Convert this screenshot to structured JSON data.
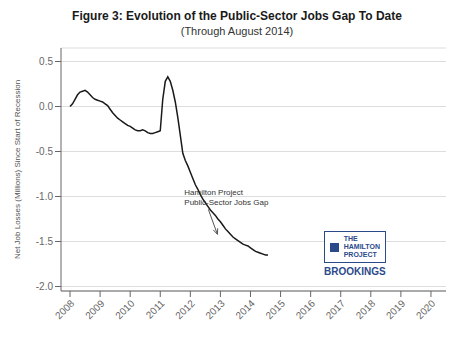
{
  "chart_data": {
    "type": "line",
    "title": "Figure 3: Evolution of the Public-Sector Jobs Gap To Date",
    "subtitle": "(Through August 2014)",
    "y_label": "Net Job Losses (Millions) Since Start of Recession",
    "xlim": [
      2007.7,
      2020.5
    ],
    "xticks": [
      2008,
      2009,
      2010,
      2011,
      2012,
      2013,
      2014,
      2015,
      2016,
      2017,
      2018,
      2019,
      2020
    ],
    "ylim": [
      -2.05,
      0.65
    ],
    "yticks": [
      0.5,
      {
        "value": 0.0,
        "label": "0.0"
      },
      -0.5,
      {
        "value": -1.0,
        "label": "-1.0"
      },
      -1.5,
      {
        "value": -2.0,
        "label": "-2.0"
      }
    ],
    "grid": "y",
    "color": "#1a1a1a",
    "x": [
      2008.0,
      2008.083,
      2008.167,
      2008.25,
      2008.333,
      2008.417,
      2008.5,
      2008.583,
      2008.667,
      2008.75,
      2008.833,
      2008.917,
      2009.0,
      2009.083,
      2009.167,
      2009.25,
      2009.333,
      2009.417,
      2009.5,
      2009.583,
      2009.667,
      2009.75,
      2009.833,
      2009.917,
      2010.0,
      2010.083,
      2010.167,
      2010.25,
      2010.333,
      2010.417,
      2010.5,
      2010.583,
      2010.667,
      2010.75,
      2010.833,
      2010.917,
      2011.0,
      2011.083,
      2011.167,
      2011.25,
      2011.333,
      2011.417,
      2011.5,
      2011.583,
      2011.667,
      2011.75,
      2011.833,
      2011.917,
      2012.0,
      2012.083,
      2012.167,
      2012.25,
      2012.333,
      2012.417,
      2012.5,
      2012.583,
      2012.667,
      2012.75,
      2012.833,
      2012.917,
      2013.0,
      2013.083,
      2013.167,
      2013.25,
      2013.333,
      2013.417,
      2013.5,
      2013.583,
      2013.667,
      2013.75,
      2013.833,
      2013.917,
      2014.0,
      2014.083,
      2014.167,
      2014.25,
      2014.333,
      2014.417,
      2014.5,
      2014.583
    ],
    "values": [
      0.0,
      0.03,
      0.08,
      0.13,
      0.16,
      0.17,
      0.18,
      0.16,
      0.13,
      0.1,
      0.08,
      0.07,
      0.06,
      0.05,
      0.03,
      0.01,
      -0.03,
      -0.07,
      -0.1,
      -0.13,
      -0.15,
      -0.17,
      -0.19,
      -0.21,
      -0.22,
      -0.24,
      -0.26,
      -0.27,
      -0.27,
      -0.26,
      -0.27,
      -0.29,
      -0.3,
      -0.3,
      -0.29,
      -0.28,
      -0.27,
      0.08,
      0.28,
      0.33,
      0.28,
      0.18,
      0.05,
      -0.12,
      -0.32,
      -0.52,
      -0.6,
      -0.66,
      -0.73,
      -0.8,
      -0.87,
      -0.92,
      -0.98,
      -1.03,
      -1.07,
      -1.11,
      -1.15,
      -1.18,
      -1.21,
      -1.25,
      -1.28,
      -1.32,
      -1.36,
      -1.39,
      -1.42,
      -1.45,
      -1.47,
      -1.49,
      -1.51,
      -1.53,
      -1.54,
      -1.55,
      -1.57,
      -1.59,
      -1.61,
      -1.62,
      -1.63,
      -1.64,
      -1.65,
      -1.65
    ],
    "annotations": [
      {
        "text": "Hamilton Project\nPublic-Sector Jobs Gap",
        "x": 2012.9,
        "y": -1.42,
        "text_x": 2011.8,
        "text_y": -1.02
      },
      {
        "text": "THE"
      },
      {
        "text": "HAMILTON"
      },
      {
        "text": "PROJECT"
      },
      {
        "text": "BROOKINGS"
      }
    ]
  }
}
